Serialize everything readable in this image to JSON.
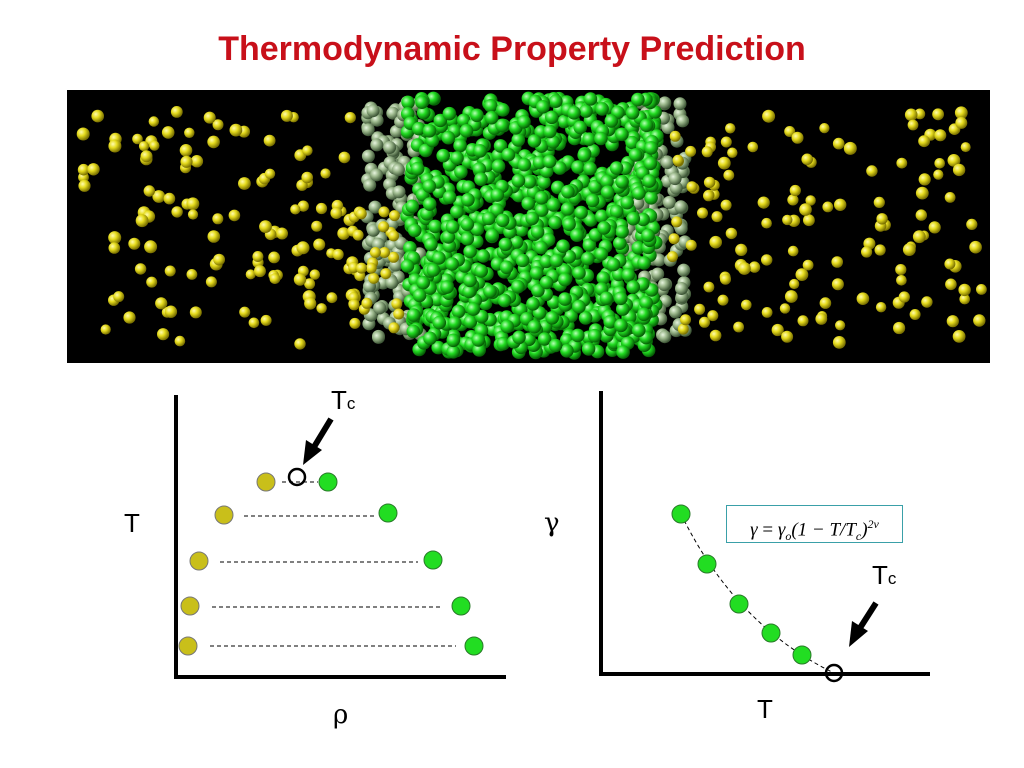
{
  "title": "Thermodynamic Property Prediction",
  "colors": {
    "title": "#c8101a",
    "vapor": "#e6dc1e",
    "liquid": "#22dd22",
    "interface": "#9cb88c",
    "sim_background": "#000000",
    "coexist_vapor_marker": "#c9bf1a",
    "coexist_liquid_marker": "#22dd22",
    "equation_border": "#3aa0a8"
  },
  "left_plot": {
    "ylabel": "T",
    "xlabel": "ρ",
    "critical_label_main": "T",
    "critical_label_sub": "c",
    "arrow_icon": "arrow-down-left-icon"
  },
  "right_plot": {
    "ylabel": "γ",
    "xlabel": "T",
    "critical_label_main": "T",
    "critical_label_sub": "c",
    "arrow_icon": "arrow-down-left-icon",
    "equation": "γ = γo(1 − T/Tc)2ν",
    "equation_parts": {
      "lhs": "γ",
      "eq": "=",
      "gamma0": "γ",
      "gamma0_sub": "o",
      "body": "(1 − T/T",
      "tc_sub": "c",
      "close": ")",
      "exponent": "2ν"
    }
  }
}
